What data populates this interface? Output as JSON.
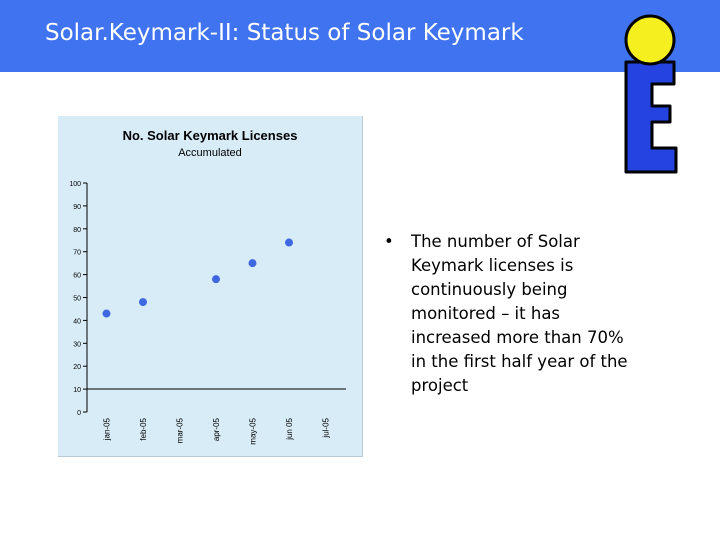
{
  "slide": {
    "title": "Solar.Keymark-II: Status of Solar Keymark",
    "bullet_marker": "•",
    "bullet_text": "The number of Solar Keymark licenses is continuously being monitored – it has increased more than 70% in the first half year of the project",
    "colors": {
      "header": "#3f73f0",
      "chart_background": "#d8ecf8",
      "marker": "#3f68e0",
      "logo_yellow": "#f5ef1f",
      "logo_blue": "#2443e0"
    },
    "logo_icon": "solar-keymark-logo-icon"
  },
  "chart_data": {
    "type": "scatter",
    "title": "No. Solar Keymark Licenses",
    "subtitle": "Accumulated",
    "categories": [
      "jan-05",
      "feb-05",
      "mar-05",
      "apr-05",
      "may-05",
      "jun-05",
      "jul-05"
    ],
    "tick_labels": [
      "jan-05",
      "feb-05",
      "mar-05",
      "apr-05",
      "may-05",
      "jun 05",
      "jul-05"
    ],
    "values": [
      43,
      48,
      null,
      58,
      65,
      74,
      null
    ],
    "y_ticks": [
      0,
      10,
      20,
      30,
      40,
      50,
      60,
      70,
      80,
      90,
      100
    ],
    "ylim": [
      0,
      100
    ],
    "grid": false,
    "legend": "none"
  }
}
